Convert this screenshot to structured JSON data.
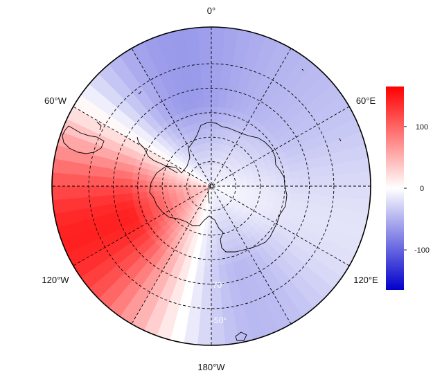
{
  "map": {
    "projection": "south-polar-stereographic",
    "longitude_labels": {
      "top": "0°",
      "upper_left": "60°W",
      "upper_right": "60°E",
      "lower_left": "120°W",
      "lower_right": "120°E",
      "bottom": "180°W"
    },
    "latitude_labels": [
      "-70°",
      "-50°"
    ],
    "graticule": {
      "latitudes_deg": [
        -80,
        -70,
        -60,
        -50,
        -40
      ],
      "meridian_step_deg": 30,
      "style": "dashed"
    },
    "colors": {
      "low": "#0000cc",
      "mid": "#ffffff",
      "high": "#ff0000",
      "coast": "#000000"
    }
  },
  "colorbar": {
    "min": -165,
    "max": 165,
    "ticks": [
      {
        "value": 100,
        "label": "100"
      },
      {
        "value": 0,
        "label": "0"
      },
      {
        "value": -100,
        "label": "-100"
      }
    ]
  }
}
